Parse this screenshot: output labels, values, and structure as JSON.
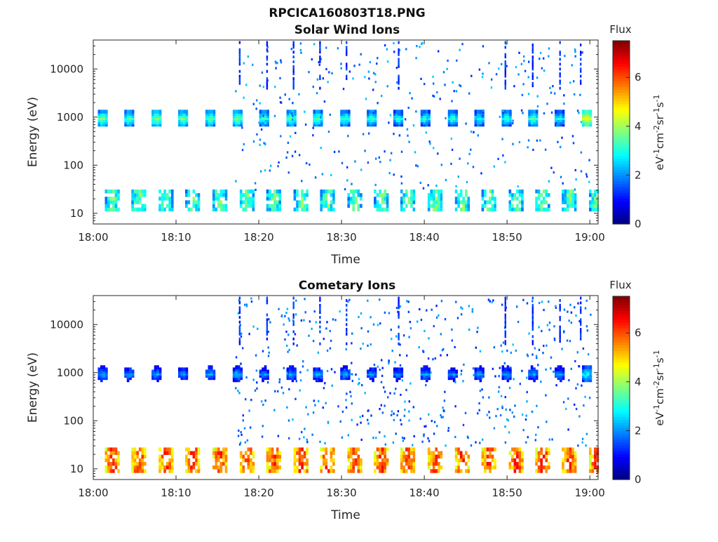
{
  "figure": {
    "title": "RPCICA160803T18.PNG"
  },
  "colors": {
    "colormap": [
      "#00007f",
      "#0000ff",
      "#007fff",
      "#00ffff",
      "#7fff7f",
      "#ffff00",
      "#ff7f00",
      "#ff0000",
      "#7f0000"
    ],
    "axes": "#262626",
    "background": "#ffffff"
  },
  "chart_data": [
    {
      "type": "heatmap",
      "subtitle": "Solar Wind Ions",
      "xlabel": "Time",
      "ylabel": "Energy (eV)",
      "x_range_minutes": [
        0,
        61
      ],
      "x_ticks": [
        "18:00",
        "18:10",
        "18:20",
        "18:30",
        "18:40",
        "18:50",
        "19:00"
      ],
      "y_scale": "log",
      "y_range": [
        6,
        40000
      ],
      "y_ticks": [
        "10",
        "100",
        "1000",
        "10000"
      ],
      "colorbar": {
        "title": "Flux",
        "label": "eV-1cm-2sr-1s-1",
        "range": [
          0,
          7.5
        ],
        "ticks": [
          "0",
          "2",
          "4",
          "6"
        ]
      },
      "features": {
        "beam_energy_eV": 950,
        "beam_times_min": [
          1,
          4.2,
          7.5,
          10.7,
          14,
          17.3,
          20.5,
          23.8,
          27,
          30.3,
          33.5,
          36.7,
          40,
          43.3,
          46.5,
          49.8,
          53,
          56.2,
          59.5
        ],
        "beam_flux": [
          3.8,
          3.6,
          4.0,
          3.8,
          3.7,
          3.9,
          3.5,
          3.7,
          3.6,
          3.5,
          3.4,
          3.2,
          3.3,
          3.4,
          3.2,
          3.3,
          3.6,
          3.2,
          4.8
        ],
        "low_energy_band_eV": [
          12,
          30
        ],
        "low_band_flux": 3.6,
        "sparse_highE_flux": 1.2
      }
    },
    {
      "type": "heatmap",
      "subtitle": "Cometary Ions",
      "xlabel": "Time",
      "ylabel": "Energy (eV)",
      "x_range_minutes": [
        0,
        61
      ],
      "x_ticks": [
        "18:00",
        "18:10",
        "18:20",
        "18:30",
        "18:40",
        "18:50",
        "19:00"
      ],
      "y_scale": "log",
      "y_range": [
        6,
        40000
      ],
      "y_ticks": [
        "10",
        "100",
        "1000",
        "10000"
      ],
      "colorbar": {
        "title": "Flux",
        "label": "eV-1cm-2sr-1s-1",
        "range": [
          0,
          7.5
        ],
        "ticks": [
          "0",
          "2",
          "4",
          "6"
        ]
      },
      "features": {
        "beam_energy_eV": 950,
        "beam_times_min": [
          1,
          4.2,
          7.5,
          10.7,
          14,
          17.3,
          20.5,
          23.8,
          27,
          30.3,
          33.5,
          36.7,
          40,
          43.3,
          46.5,
          49.8,
          53,
          56.2,
          59.5
        ],
        "beam_flux": [
          2.5,
          2.3,
          2.4,
          2.3,
          2.4,
          2.6,
          2.2,
          2.4,
          2.4,
          2.3,
          2.2,
          2.2,
          2.4,
          2.2,
          2.3,
          2.4,
          2.3,
          2.4,
          3.2
        ],
        "low_energy_band_eV": [
          9,
          30
        ],
        "low_band_flux": 6.2,
        "sparse_highE_flux": 1.1
      }
    }
  ]
}
